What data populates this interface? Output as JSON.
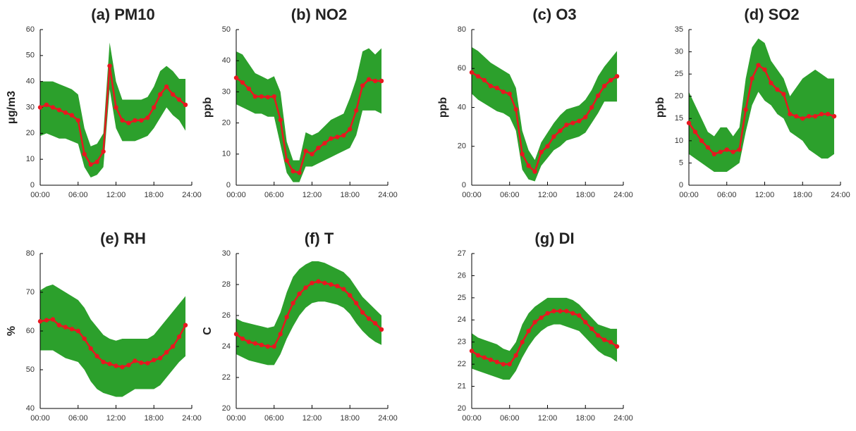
{
  "chart_data": [
    {
      "type": "line",
      "title": "(a) PM10",
      "ylabel": "μg/m3",
      "x": [
        0,
        1,
        2,
        3,
        4,
        5,
        6,
        7,
        8,
        9,
        10,
        11,
        12,
        13,
        14,
        15,
        16,
        17,
        18,
        19,
        20,
        21,
        22,
        23
      ],
      "xlim": [
        0,
        24
      ],
      "xticks": [
        {
          "value": 0,
          "label": "00:00"
        },
        {
          "value": 6,
          "label": "06:00"
        },
        {
          "value": 12,
          "label": "12:00"
        },
        {
          "value": 18,
          "label": "18:00"
        },
        {
          "value": 24,
          "label": "24:00"
        }
      ],
      "ylim": [
        0,
        60
      ],
      "yticks": [
        0,
        10,
        20,
        30,
        40,
        50,
        60
      ],
      "band": {
        "color": "#2ca02c",
        "upper": [
          40,
          40,
          40,
          39,
          38,
          37,
          35,
          22,
          15,
          16,
          20,
          55,
          40,
          33,
          33,
          33,
          33,
          34,
          38,
          44,
          46,
          44,
          41,
          41
        ],
        "lower": [
          19,
          20,
          19,
          18,
          18,
          17,
          16,
          7,
          3,
          4,
          7,
          37,
          22,
          17,
          17,
          17,
          18,
          19,
          22,
          26,
          30,
          27,
          25,
          21
        ]
      },
      "series": [
        {
          "color": "#e8171f",
          "values": [
            30,
            31,
            30,
            29,
            28,
            27,
            25,
            12,
            8,
            9,
            13,
            46,
            30,
            25,
            24,
            25,
            25,
            26,
            30,
            35,
            38,
            35,
            33,
            31
          ]
        }
      ]
    },
    {
      "type": "line",
      "title": "(b) NO2",
      "ylabel": "ppb",
      "x": [
        0,
        1,
        2,
        3,
        4,
        5,
        6,
        7,
        8,
        9,
        10,
        11,
        12,
        13,
        14,
        15,
        16,
        17,
        18,
        19,
        20,
        21,
        22,
        23
      ],
      "xlim": [
        0,
        24
      ],
      "xticks": [
        {
          "value": 0,
          "label": "00:00"
        },
        {
          "value": 6,
          "label": "06:00"
        },
        {
          "value": 12,
          "label": "12:00"
        },
        {
          "value": 18,
          "label": "18:00"
        },
        {
          "value": 24,
          "label": "24:00"
        }
      ],
      "ylim": [
        0,
        50
      ],
      "yticks": [
        0,
        10,
        20,
        30,
        40,
        50
      ],
      "band": {
        "color": "#2ca02c",
        "upper": [
          43,
          42,
          39,
          36,
          35,
          34,
          35,
          30,
          14,
          8,
          8,
          17,
          16,
          17,
          19,
          21,
          22,
          23,
          28,
          34,
          43,
          44,
          42,
          44
        ],
        "lower": [
          26,
          25,
          24,
          23,
          23,
          22,
          22,
          13,
          4,
          1,
          1,
          6,
          6,
          7,
          8,
          9,
          10,
          11,
          12,
          16,
          24,
          24,
          24,
          23
        ]
      },
      "series": [
        {
          "color": "#e8171f",
          "values": [
            34.5,
            33,
            31,
            28.5,
            28.5,
            28.3,
            28.5,
            21,
            8,
            4.5,
            4,
            11,
            10,
            12,
            13.5,
            15,
            15.5,
            16,
            18,
            24,
            32,
            34,
            33.5,
            33.5
          ]
        }
      ]
    },
    {
      "type": "line",
      "title": "(c) O3",
      "ylabel": "ppb",
      "x": [
        0,
        1,
        2,
        3,
        4,
        5,
        6,
        7,
        8,
        9,
        10,
        11,
        12,
        13,
        14,
        15,
        16,
        17,
        18,
        19,
        20,
        21,
        22,
        23
      ],
      "xlim": [
        0,
        24
      ],
      "xticks": [
        {
          "value": 0,
          "label": "00:00"
        },
        {
          "value": 6,
          "label": "06:00"
        },
        {
          "value": 12,
          "label": "12:00"
        },
        {
          "value": 18,
          "label": "18:00"
        },
        {
          "value": 24,
          "label": "24:00"
        }
      ],
      "ylim": [
        0,
        80
      ],
      "yticks": [
        0,
        20,
        40,
        60,
        80
      ],
      "band": {
        "color": "#2ca02c",
        "upper": [
          71,
          69,
          66,
          63,
          61,
          59,
          57,
          50,
          28,
          18,
          13,
          22,
          27,
          32,
          36,
          39,
          40,
          41,
          44,
          49,
          56,
          61,
          65,
          69
        ],
        "lower": [
          47,
          44,
          42,
          40,
          38,
          37,
          35,
          28,
          8,
          3,
          2,
          10,
          14,
          18,
          20,
          23,
          24,
          25,
          27,
          32,
          37,
          43,
          43,
          43
        ]
      },
      "series": [
        {
          "color": "#e8171f",
          "values": [
            58,
            56,
            54,
            51,
            50,
            48,
            47,
            39,
            16,
            10,
            7,
            17,
            20,
            25,
            28,
            31,
            32,
            33,
            35,
            40,
            46,
            51,
            54,
            56
          ]
        }
      ]
    },
    {
      "type": "line",
      "title": "(d) SO2",
      "ylabel": "ppb",
      "x": [
        0,
        1,
        2,
        3,
        4,
        5,
        6,
        7,
        8,
        9,
        10,
        11,
        12,
        13,
        14,
        15,
        16,
        17,
        18,
        19,
        20,
        21,
        22,
        23
      ],
      "xlim": [
        0,
        24
      ],
      "xticks": [
        {
          "value": 0,
          "label": "00:00"
        },
        {
          "value": 6,
          "label": "06:00"
        },
        {
          "value": 12,
          "label": "12:00"
        },
        {
          "value": 18,
          "label": "18:00"
        },
        {
          "value": 24,
          "label": "24:00"
        }
      ],
      "ylim": [
        0,
        35
      ],
      "yticks": [
        0,
        5,
        10,
        15,
        20,
        25,
        30,
        35
      ],
      "band": {
        "color": "#2ca02c",
        "upper": [
          21,
          18,
          15,
          12,
          11,
          13,
          13,
          11,
          13,
          24,
          31,
          33,
          32,
          28,
          26,
          24,
          20,
          22,
          24,
          25,
          26,
          25,
          24,
          24
        ],
        "lower": [
          7,
          6,
          5,
          4,
          3,
          3,
          3,
          4,
          5,
          12,
          18,
          21,
          19,
          18,
          16,
          15,
          12,
          11,
          10,
          8,
          7,
          6,
          6,
          7
        ]
      },
      "series": [
        {
          "color": "#e8171f",
          "values": [
            14,
            12,
            10,
            8.5,
            7,
            7.5,
            8,
            7.5,
            8,
            17,
            24,
            27,
            26,
            23,
            21.5,
            20.5,
            16,
            15.5,
            15,
            15.5,
            15.5,
            16,
            16,
            15.5
          ]
        }
      ]
    },
    {
      "type": "line",
      "title": "(e) RH",
      "ylabel": "%",
      "x": [
        0,
        1,
        2,
        3,
        4,
        5,
        6,
        7,
        8,
        9,
        10,
        11,
        12,
        13,
        14,
        15,
        16,
        17,
        18,
        19,
        20,
        21,
        22,
        23
      ],
      "xlim": [
        0,
        24
      ],
      "xticks": [
        {
          "value": 0,
          "label": "00:00"
        },
        {
          "value": 6,
          "label": "06:00"
        },
        {
          "value": 12,
          "label": "12:00"
        },
        {
          "value": 18,
          "label": "18:00"
        },
        {
          "value": 24,
          "label": "24:00"
        }
      ],
      "ylim": [
        40,
        80
      ],
      "yticks": [
        40,
        50,
        60,
        70,
        80
      ],
      "band": {
        "color": "#2ca02c",
        "upper": [
          70.5,
          71.5,
          72,
          71,
          70,
          69,
          68,
          66,
          63,
          61,
          59,
          58,
          57.5,
          58,
          58,
          58,
          58,
          58,
          59,
          61,
          63,
          65,
          67,
          69
        ],
        "lower": [
          55,
          55,
          55,
          54,
          53,
          52.5,
          52,
          50,
          47,
          45,
          44,
          43.5,
          43,
          43,
          44,
          45,
          45,
          45,
          45,
          46,
          48,
          50,
          52,
          53.5
        ]
      },
      "series": [
        {
          "color": "#e8171f",
          "values": [
            62.5,
            62.8,
            63,
            61.5,
            61,
            60.5,
            60,
            58,
            55.5,
            53.5,
            52,
            51.5,
            51,
            50.7,
            51.2,
            52.3,
            51.8,
            51.7,
            52.5,
            53,
            54.5,
            56,
            58.5,
            61.5
          ]
        }
      ]
    },
    {
      "type": "line",
      "title": "(f) T",
      "ylabel": "C",
      "x": [
        0,
        1,
        2,
        3,
        4,
        5,
        6,
        7,
        8,
        9,
        10,
        11,
        12,
        13,
        14,
        15,
        16,
        17,
        18,
        19,
        20,
        21,
        22,
        23
      ],
      "xlim": [
        0,
        24
      ],
      "xticks": [
        {
          "value": 0,
          "label": "00:00"
        },
        {
          "value": 6,
          "label": "06:00"
        },
        {
          "value": 12,
          "label": "12:00"
        },
        {
          "value": 18,
          "label": "18:00"
        },
        {
          "value": 24,
          "label": "24:00"
        }
      ],
      "ylim": [
        20,
        30
      ],
      "yticks": [
        20,
        22,
        24,
        26,
        28,
        30
      ],
      "band": {
        "color": "#2ca02c",
        "upper": [
          25.8,
          25.6,
          25.5,
          25.4,
          25.3,
          25.2,
          25.3,
          26.2,
          27.5,
          28.5,
          29,
          29.3,
          29.5,
          29.5,
          29.4,
          29.2,
          29,
          28.8,
          28.4,
          27.8,
          27.2,
          26.8,
          26.4,
          26
        ],
        "lower": [
          23.5,
          23.3,
          23.1,
          23,
          22.9,
          22.8,
          22.8,
          23.5,
          24.5,
          25.3,
          26,
          26.5,
          26.8,
          26.9,
          26.9,
          26.8,
          26.7,
          26.5,
          26.1,
          25.5,
          25,
          24.6,
          24.3,
          24.1
        ]
      },
      "series": [
        {
          "color": "#e8171f",
          "values": [
            24.8,
            24.5,
            24.3,
            24.2,
            24.1,
            24,
            24,
            24.8,
            25.9,
            26.8,
            27.4,
            27.8,
            28.1,
            28.2,
            28.1,
            28,
            27.9,
            27.7,
            27.3,
            26.8,
            26.2,
            25.8,
            25.5,
            25.1
          ]
        }
      ]
    },
    {
      "type": "line",
      "title": "(g) DI",
      "x": [
        0,
        1,
        2,
        3,
        4,
        5,
        6,
        7,
        8,
        9,
        10,
        11,
        12,
        13,
        14,
        15,
        16,
        17,
        18,
        19,
        20,
        21,
        22,
        23
      ],
      "xlim": [
        0,
        24
      ],
      "xticks": [
        {
          "value": 0,
          "label": "00:00"
        },
        {
          "value": 6,
          "label": "06:00"
        },
        {
          "value": 12,
          "label": "12:00"
        },
        {
          "value": 18,
          "label": "18:00"
        },
        {
          "value": 24,
          "label": "24:00"
        }
      ],
      "ylim": [
        20,
        27
      ],
      "yticks": [
        20,
        21,
        22,
        23,
        24,
        25,
        26,
        27
      ],
      "band": {
        "color": "#2ca02c",
        "upper": [
          23.4,
          23.2,
          23.1,
          23,
          22.9,
          22.7,
          22.6,
          23,
          23.8,
          24.3,
          24.6,
          24.8,
          25,
          25,
          25,
          25,
          24.9,
          24.7,
          24.4,
          24.1,
          23.8,
          23.7,
          23.6,
          23.6
        ],
        "lower": [
          21.8,
          21.7,
          21.6,
          21.5,
          21.4,
          21.3,
          21.3,
          21.7,
          22.3,
          22.8,
          23.2,
          23.5,
          23.7,
          23.8,
          23.8,
          23.7,
          23.6,
          23.5,
          23.2,
          22.9,
          22.6,
          22.4,
          22.3,
          22.1
        ]
      },
      "series": [
        {
          "color": "#e8171f",
          "values": [
            22.6,
            22.4,
            22.3,
            22.2,
            22.1,
            22,
            22,
            22.4,
            23,
            23.5,
            23.9,
            24.1,
            24.3,
            24.4,
            24.4,
            24.4,
            24.3,
            24.2,
            23.9,
            23.6,
            23.3,
            23.1,
            23,
            22.8
          ]
        }
      ]
    }
  ]
}
